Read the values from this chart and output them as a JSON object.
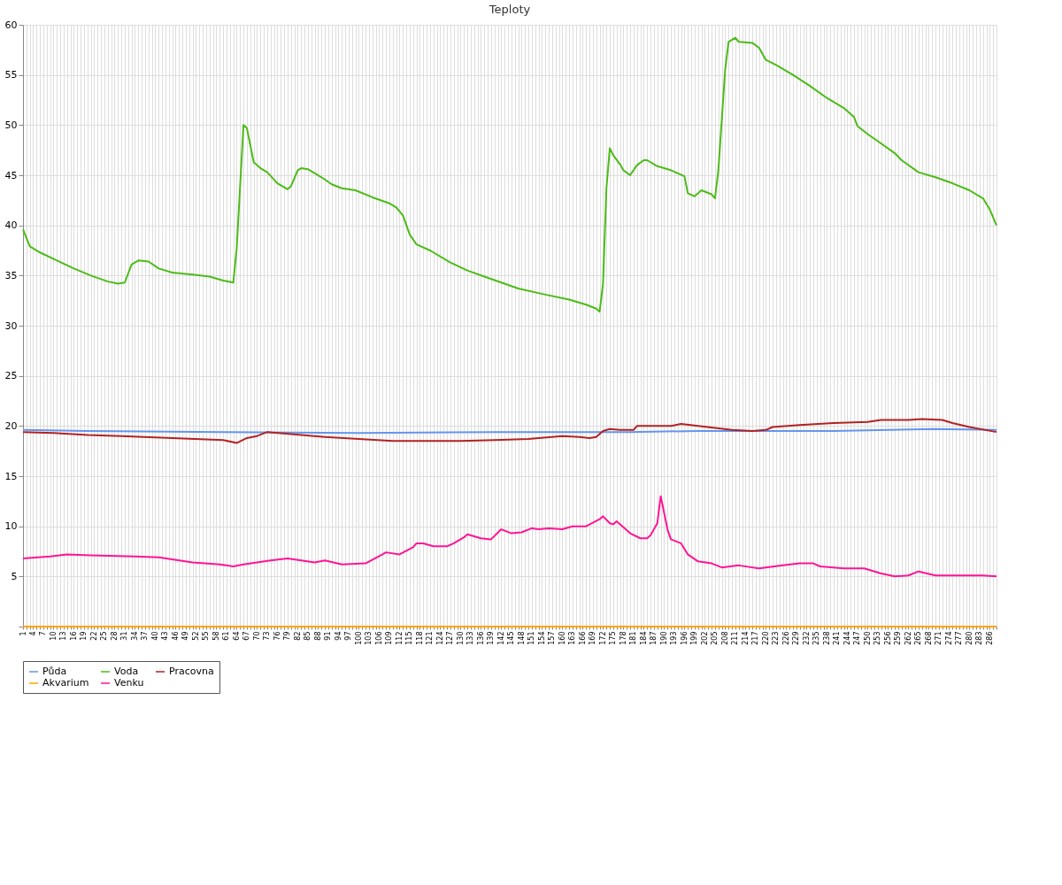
{
  "chart_data": {
    "type": "line",
    "title": "Teploty",
    "xlim": [
      1,
      288
    ],
    "xticks": [
      1,
      {
        "value": 2,
        "label": null
      },
      {
        "value": 3,
        "label": null
      },
      4,
      {
        "value": 5,
        "label": null
      },
      {
        "value": 6,
        "label": null
      },
      7,
      {
        "value": 8,
        "label": null
      },
      {
        "value": 9,
        "label": null
      },
      10,
      {
        "value": 11,
        "label": null
      },
      {
        "value": 12,
        "label": null
      },
      13,
      {
        "value": 14,
        "label": null
      },
      {
        "value": 15,
        "label": null
      },
      16,
      {
        "value": 17,
        "label": null
      },
      {
        "value": 18,
        "label": null
      },
      19,
      {
        "value": 20,
        "label": null
      },
      {
        "value": 21,
        "label": null
      },
      22,
      {
        "value": 23,
        "label": null
      },
      {
        "value": 24,
        "label": null
      },
      25,
      {
        "value": 26,
        "label": null
      },
      {
        "value": 27,
        "label": null
      },
      28,
      {
        "value": 29,
        "label": null
      },
      {
        "value": 30,
        "label": null
      },
      31,
      {
        "value": 32,
        "label": null
      },
      {
        "value": 33,
        "label": null
      },
      34,
      {
        "value": 35,
        "label": null
      },
      {
        "value": 36,
        "label": null
      },
      37,
      {
        "value": 38,
        "label": null
      },
      {
        "value": 39,
        "label": null
      },
      40,
      {
        "value": 41,
        "label": null
      },
      {
        "value": 42,
        "label": null
      },
      43,
      {
        "value": 44,
        "label": null
      },
      {
        "value": 45,
        "label": null
      },
      46,
      {
        "value": 47,
        "label": null
      },
      {
        "value": 48,
        "label": null
      },
      49,
      {
        "value": 50,
        "label": null
      },
      {
        "value": 51,
        "label": null
      },
      52,
      {
        "value": 53,
        "label": null
      },
      {
        "value": 54,
        "label": null
      },
      55,
      {
        "value": 56,
        "label": null
      },
      {
        "value": 57,
        "label": null
      },
      58,
      {
        "value": 59,
        "label": null
      },
      {
        "value": 60,
        "label": null
      },
      61,
      {
        "value": 62,
        "label": null
      },
      {
        "value": 63,
        "label": null
      },
      64,
      {
        "value": 65,
        "label": null
      },
      {
        "value": 66,
        "label": null
      },
      67,
      {
        "value": 68,
        "label": null
      },
      {
        "value": 69,
        "label": null
      },
      70,
      {
        "value": 71,
        "label": null
      },
      {
        "value": 72,
        "label": null
      },
      73,
      {
        "value": 74,
        "label": null
      },
      {
        "value": 75,
        "label": null
      },
      76,
      {
        "value": 77,
        "label": null
      },
      {
        "value": 78,
        "label": null
      },
      79,
      {
        "value": 80,
        "label": null
      },
      {
        "value": 81,
        "label": null
      },
      82,
      {
        "value": 83,
        "label": null
      },
      {
        "value": 84,
        "label": null
      },
      85,
      {
        "value": 86,
        "label": null
      },
      {
        "value": 87,
        "label": null
      },
      88,
      {
        "value": 89,
        "label": null
      },
      {
        "value": 90,
        "label": null
      },
      91,
      {
        "value": 92,
        "label": null
      },
      {
        "value": 93,
        "label": null
      },
      94,
      {
        "value": 95,
        "label": null
      },
      {
        "value": 96,
        "label": null
      },
      97,
      {
        "value": 98,
        "label": null
      },
      {
        "value": 99,
        "label": null
      },
      100,
      {
        "value": 101,
        "label": null
      },
      {
        "value": 102,
        "label": null
      },
      103,
      {
        "value": 104,
        "label": null
      },
      {
        "value": 105,
        "label": null
      },
      106,
      {
        "value": 107,
        "label": null
      },
      {
        "value": 108,
        "label": null
      },
      109,
      {
        "value": 110,
        "label": null
      },
      {
        "value": 111,
        "label": null
      },
      112,
      {
        "value": 113,
        "label": null
      },
      {
        "value": 114,
        "label": null
      },
      115,
      {
        "value": 116,
        "label": null
      },
      {
        "value": 117,
        "label": null
      },
      118,
      {
        "value": 119,
        "label": null
      },
      {
        "value": 120,
        "label": null
      },
      121,
      {
        "value": 122,
        "label": null
      },
      {
        "value": 123,
        "label": null
      },
      124,
      {
        "value": 125,
        "label": null
      },
      {
        "value": 126,
        "label": null
      },
      127,
      {
        "value": 128,
        "label": null
      },
      {
        "value": 129,
        "label": null
      },
      130,
      {
        "value": 131,
        "label": null
      },
      {
        "value": 132,
        "label": null
      },
      133,
      {
        "value": 134,
        "label": null
      },
      {
        "value": 135,
        "label": null
      },
      136,
      {
        "value": 137,
        "label": null
      },
      {
        "value": 138,
        "label": null
      },
      139,
      {
        "value": 140,
        "label": null
      },
      {
        "value": 141,
        "label": null
      },
      142,
      {
        "value": 143,
        "label": null
      },
      {
        "value": 144,
        "label": null
      },
      145,
      {
        "value": 146,
        "label": null
      },
      {
        "value": 147,
        "label": null
      },
      148,
      {
        "value": 149,
        "label": null
      },
      {
        "value": 150,
        "label": null
      },
      151,
      {
        "value": 152,
        "label": null
      },
      {
        "value": 153,
        "label": null
      },
      154,
      {
        "value": 155,
        "label": null
      },
      {
        "value": 156,
        "label": null
      },
      157,
      {
        "value": 158,
        "label": null
      },
      {
        "value": 159,
        "label": null
      },
      160,
      {
        "value": 161,
        "label": null
      },
      {
        "value": 162,
        "label": null
      },
      163,
      {
        "value": 164,
        "label": null
      },
      {
        "value": 165,
        "label": null
      },
      166,
      {
        "value": 167,
        "label": null
      },
      {
        "value": 168,
        "label": null
      },
      169,
      {
        "value": 170,
        "label": null
      },
      {
        "value": 171,
        "label": null
      },
      172,
      {
        "value": 173,
        "label": null
      },
      {
        "value": 174,
        "label": null
      },
      175,
      {
        "value": 176,
        "label": null
      },
      {
        "value": 177,
        "label": null
      },
      178,
      {
        "value": 179,
        "label": null
      },
      {
        "value": 180,
        "label": null
      },
      181,
      {
        "value": 182,
        "label": null
      },
      {
        "value": 183,
        "label": null
      },
      184,
      {
        "value": 185,
        "label": null
      },
      {
        "value": 186,
        "label": null
      },
      187,
      {
        "value": 188,
        "label": null
      },
      {
        "value": 189,
        "label": null
      },
      190,
      {
        "value": 191,
        "label": null
      },
      {
        "value": 192,
        "label": null
      },
      193,
      {
        "value": 194,
        "label": null
      },
      {
        "value": 195,
        "label": null
      },
      196,
      {
        "value": 197,
        "label": null
      },
      {
        "value": 198,
        "label": null
      },
      199,
      {
        "value": 200,
        "label": null
      },
      {
        "value": 201,
        "label": null
      },
      202,
      {
        "value": 203,
        "label": null
      },
      {
        "value": 204,
        "label": null
      },
      205,
      {
        "value": 206,
        "label": null
      },
      {
        "value": 207,
        "label": null
      },
      208,
      {
        "value": 209,
        "label": null
      },
      {
        "value": 210,
        "label": null
      },
      211,
      {
        "value": 212,
        "label": null
      },
      {
        "value": 213,
        "label": null
      },
      214,
      {
        "value": 215,
        "label": null
      },
      {
        "value": 216,
        "label": null
      },
      217,
      {
        "value": 218,
        "label": null
      },
      {
        "value": 219,
        "label": null
      },
      220,
      {
        "value": 221,
        "label": null
      },
      {
        "value": 222,
        "label": null
      },
      223,
      {
        "value": 224,
        "label": null
      },
      {
        "value": 225,
        "label": null
      },
      226,
      {
        "value": 227,
        "label": null
      },
      {
        "value": 228,
        "label": null
      },
      229,
      {
        "value": 230,
        "label": null
      },
      {
        "value": 231,
        "label": null
      },
      232,
      {
        "value": 233,
        "label": null
      },
      {
        "value": 234,
        "label": null
      },
      235,
      {
        "value": 236,
        "label": null
      },
      {
        "value": 237,
        "label": null
      },
      238,
      {
        "value": 239,
        "label": null
      },
      {
        "value": 240,
        "label": null
      },
      241,
      {
        "value": 242,
        "label": null
      },
      {
        "value": 243,
        "label": null
      },
      244,
      {
        "value": 245,
        "label": null
      },
      {
        "value": 246,
        "label": null
      },
      247,
      {
        "value": 248,
        "label": null
      },
      {
        "value": 249,
        "label": null
      },
      250,
      {
        "value": 251,
        "label": null
      },
      {
        "value": 252,
        "label": null
      },
      253,
      {
        "value": 254,
        "label": null
      },
      {
        "value": 255,
        "label": null
      },
      256,
      {
        "value": 257,
        "label": null
      },
      {
        "value": 258,
        "label": null
      },
      259,
      {
        "value": 260,
        "label": null
      },
      {
        "value": 261,
        "label": null
      },
      262,
      {
        "value": 263,
        "label": null
      },
      {
        "value": 264,
        "label": null
      },
      265,
      {
        "value": 266,
        "label": null
      },
      {
        "value": 267,
        "label": null
      },
      268,
      {
        "value": 269,
        "label": null
      },
      {
        "value": 270,
        "label": null
      },
      271,
      {
        "value": 272,
        "label": null
      },
      {
        "value": 273,
        "label": null
      },
      274,
      {
        "value": 275,
        "label": null
      },
      {
        "value": 276,
        "label": null
      },
      277,
      {
        "value": 278,
        "label": null
      },
      {
        "value": 279,
        "label": null
      },
      280,
      {
        "value": 281,
        "label": null
      },
      {
        "value": 282,
        "label": null
      },
      283,
      {
        "value": 284,
        "label": null
      },
      {
        "value": 285,
        "label": null
      },
      286,
      {
        "value": 287,
        "label": null
      },
      {
        "value": 288,
        "label": null
      }
    ],
    "ylim": [
      0,
      60
    ],
    "yticks": [
      {
        "value": 0,
        "label": null
      },
      5,
      10,
      15,
      20,
      25,
      30,
      35,
      40,
      45,
      50,
      55,
      60
    ],
    "grid": true,
    "legend": "bottom",
    "line_style": "solid",
    "marker": "none",
    "series": [
      {
        "name": "Půda",
        "color": "#6495ed",
        "x": [
          1,
          20,
          60,
          100,
          140,
          170,
          180,
          200,
          240,
          270,
          288
        ],
        "values": [
          19.6,
          19.5,
          19.4,
          19.3,
          19.4,
          19.4,
          19.4,
          19.5,
          19.5,
          19.7,
          19.6
        ]
      },
      {
        "name": "Voda",
        "color": "#4cbb17",
        "x": [
          1,
          3,
          6,
          11,
          16,
          21,
          26,
          29,
          31,
          33,
          35,
          38,
          41,
          45,
          51,
          56,
          60,
          63,
          64,
          66,
          67,
          69,
          71,
          73,
          76,
          79,
          80,
          82,
          83,
          85,
          89,
          92,
          95,
          99,
          104,
          109,
          111,
          113,
          115,
          117,
          121,
          127,
          132,
          137,
          142,
          147,
          155,
          162,
          167,
          170,
          171,
          172,
          173,
          174,
          175,
          177,
          178,
          180,
          182,
          184,
          185,
          188,
          192,
          196,
          197,
          199,
          201,
          204,
          205,
          206,
          208,
          209,
          211,
          212,
          216,
          218,
          220,
          223,
          228,
          233,
          238,
          243,
          246,
          247,
          250,
          253,
          258,
          260,
          265,
          270,
          275,
          280,
          284,
          286,
          288
        ],
        "values": [
          39.6,
          37.9,
          37.3,
          36.5,
          35.7,
          35.0,
          34.4,
          34.2,
          34.3,
          36.1,
          36.5,
          36.4,
          35.7,
          35.3,
          35.1,
          34.9,
          34.5,
          34.3,
          37.7,
          50.0,
          49.7,
          46.3,
          45.7,
          45.3,
          44.2,
          43.6,
          43.9,
          45.5,
          45.7,
          45.6,
          44.8,
          44.1,
          43.7,
          43.5,
          42.8,
          42.2,
          41.8,
          41.0,
          39.1,
          38.1,
          37.5,
          36.3,
          35.5,
          34.9,
          34.3,
          33.7,
          33.1,
          32.6,
          32.1,
          31.7,
          31.4,
          34.2,
          43.7,
          47.7,
          47.0,
          46.1,
          45.5,
          45.0,
          46.0,
          46.5,
          46.5,
          45.9,
          45.5,
          44.9,
          43.2,
          42.9,
          43.5,
          43.1,
          42.7,
          45.5,
          55.5,
          58.3,
          58.7,
          58.3,
          58.2,
          57.7,
          56.5,
          56.0,
          55.0,
          53.9,
          52.7,
          51.7,
          50.8,
          49.9,
          49.1,
          48.4,
          47.2,
          46.5,
          45.3,
          44.8,
          44.2,
          43.5,
          42.7,
          41.6,
          40.0
        ]
      },
      {
        "name": "Pracovna",
        "color": "#b22222",
        "x": [
          1,
          10,
          20,
          30,
          45,
          60,
          64,
          67,
          70,
          73,
          80,
          90,
          100,
          110,
          120,
          130,
          140,
          150,
          160,
          165,
          168,
          170,
          172,
          174,
          177,
          181,
          182,
          192,
          195,
          200,
          210,
          216,
          220,
          222,
          230,
          240,
          250,
          254,
          262,
          266,
          272,
          275,
          280,
          288
        ],
        "values": [
          19.4,
          19.3,
          19.1,
          19.0,
          18.8,
          18.6,
          18.3,
          18.8,
          19.0,
          19.4,
          19.2,
          18.9,
          18.7,
          18.5,
          18.5,
          18.5,
          18.6,
          18.7,
          19.0,
          18.9,
          18.8,
          18.9,
          19.5,
          19.7,
          19.6,
          19.6,
          20.0,
          20.0,
          20.2,
          20.0,
          19.6,
          19.5,
          19.6,
          19.9,
          20.1,
          20.3,
          20.4,
          20.6,
          20.6,
          20.7,
          20.6,
          20.3,
          19.9,
          19.4
        ]
      },
      {
        "name": "Akvarium",
        "color": "#ffa500",
        "x": [
          1,
          288
        ],
        "values": [
          0,
          0
        ]
      },
      {
        "name": "Venku",
        "color": "#ff1493",
        "x": [
          1,
          9,
          14,
          21,
          34,
          41,
          51,
          59,
          63,
          66,
          74,
          79,
          87,
          90,
          95,
          102,
          107,
          108,
          112,
          116,
          117,
          119,
          122,
          126,
          128,
          131,
          132,
          136,
          139,
          142,
          145,
          148,
          151,
          153,
          156,
          160,
          163,
          167,
          171,
          172,
          174,
          175,
          176,
          180,
          183,
          185,
          186,
          188,
          189,
          191,
          192,
          195,
          197,
          200,
          204,
          207,
          212,
          218,
          225,
          230,
          234,
          236,
          243,
          249,
          254,
          258,
          262,
          265,
          270,
          278,
          284,
          288
        ],
        "values": [
          6.8,
          7.0,
          7.2,
          7.1,
          7.0,
          6.9,
          6.4,
          6.2,
          6.0,
          6.2,
          6.6,
          6.8,
          6.4,
          6.6,
          6.2,
          6.3,
          7.2,
          7.4,
          7.2,
          7.9,
          8.3,
          8.3,
          8.0,
          8.0,
          8.3,
          8.9,
          9.2,
          8.8,
          8.7,
          9.7,
          9.3,
          9.4,
          9.8,
          9.7,
          9.8,
          9.7,
          10.0,
          10.0,
          10.7,
          11.0,
          10.3,
          10.2,
          10.5,
          9.3,
          8.8,
          8.8,
          9.1,
          10.3,
          13.0,
          9.7,
          8.7,
          8.3,
          7.2,
          6.5,
          6.3,
          5.9,
          6.1,
          5.8,
          6.1,
          6.3,
          6.3,
          6.0,
          5.8,
          5.8,
          5.3,
          5.0,
          5.1,
          5.5,
          5.1,
          5.1,
          5.1,
          5.0
        ]
      }
    ]
  }
}
